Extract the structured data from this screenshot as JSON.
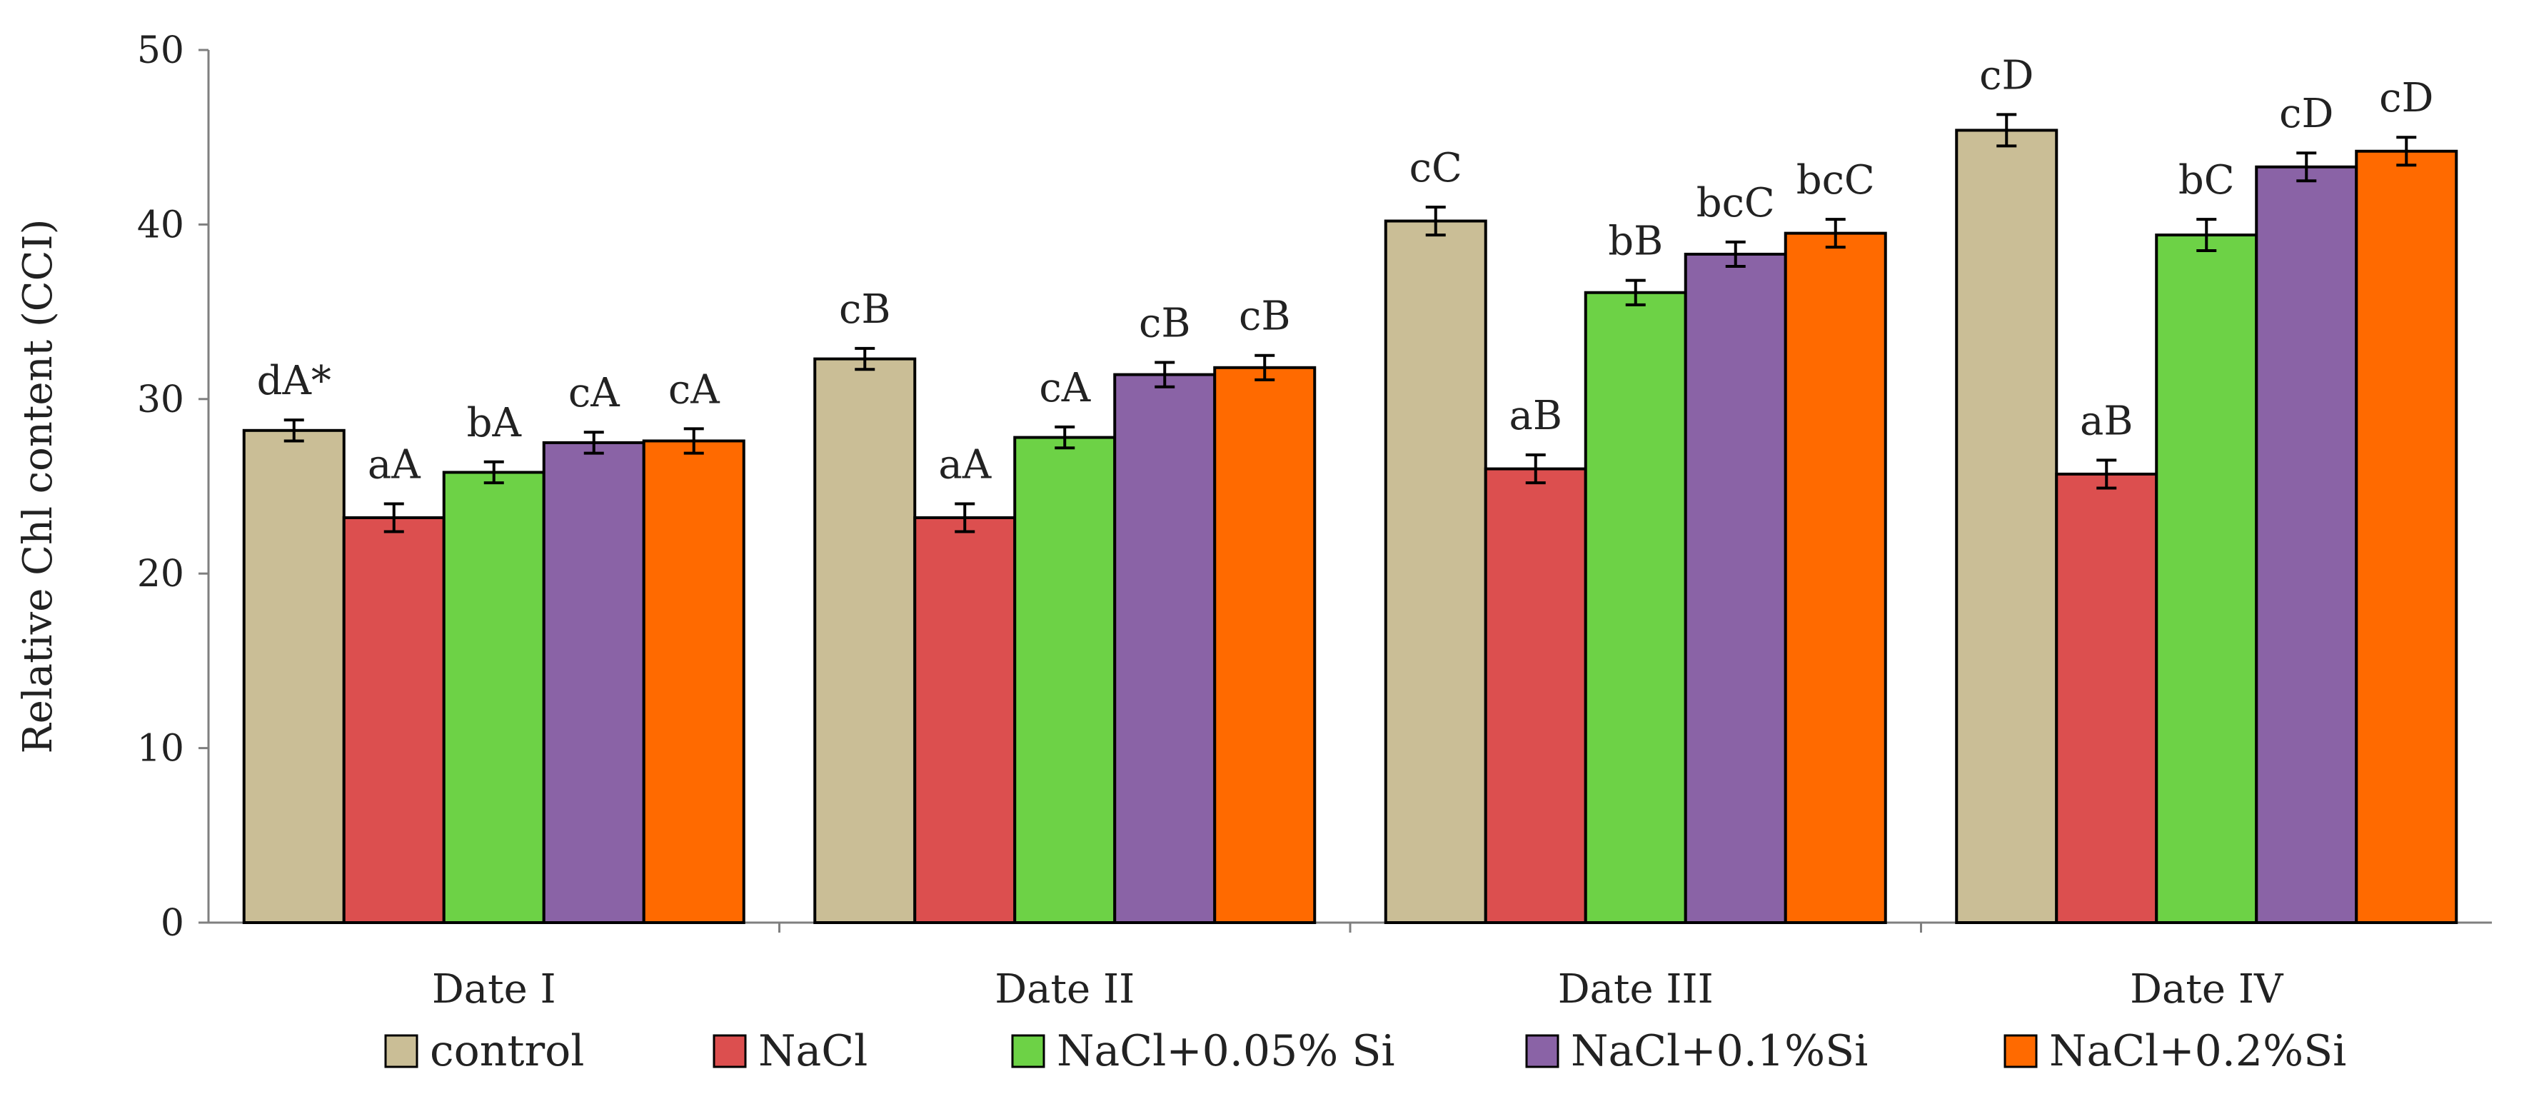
{
  "chart_data": {
    "type": "bar",
    "title": "",
    "xlabel": "",
    "ylabel": "Relative Chl content (CCI)",
    "ylim": [
      0,
      50
    ],
    "yticks": [
      0,
      10,
      20,
      30,
      40,
      50
    ],
    "grid": false,
    "legend_position": "bottom",
    "categories": [
      "Date I",
      "Date II",
      "Date III",
      "Date IV"
    ],
    "series": [
      {
        "name": "control",
        "color": "#CABE96",
        "values": [
          28.2,
          32.3,
          40.2,
          45.4
        ],
        "errors": [
          0.6,
          0.6,
          0.8,
          0.9
        ],
        "labels": [
          "dA*",
          "cB",
          "cC",
          "cD"
        ]
      },
      {
        "name": "NaCl",
        "color": "#DC4F4F",
        "values": [
          23.2,
          23.2,
          26.0,
          25.7
        ],
        "errors": [
          0.8,
          0.8,
          0.8,
          0.8
        ],
        "labels": [
          "aA",
          "aA",
          "aB",
          "aB"
        ]
      },
      {
        "name": "NaCl+0.05% Si",
        "color": "#6DD246",
        "values": [
          25.8,
          27.8,
          36.1,
          39.4
        ],
        "errors": [
          0.6,
          0.6,
          0.7,
          0.9
        ],
        "labels": [
          "bA",
          "cA",
          "bB",
          "bC"
        ]
      },
      {
        "name": "NaCl+0.1%Si",
        "color": "#8A63A6",
        "values": [
          27.5,
          31.4,
          38.3,
          43.3
        ],
        "errors": [
          0.6,
          0.7,
          0.7,
          0.8
        ],
        "labels": [
          "cA",
          "cB",
          "bcC",
          "cD"
        ]
      },
      {
        "name": "NaCl+0.2%Si",
        "color": "#FF6A00",
        "values": [
          27.6,
          31.8,
          39.5,
          44.2
        ],
        "errors": [
          0.7,
          0.7,
          0.8,
          0.8
        ],
        "labels": [
          "cA",
          "cB",
          "bcC",
          "cD"
        ]
      }
    ]
  }
}
